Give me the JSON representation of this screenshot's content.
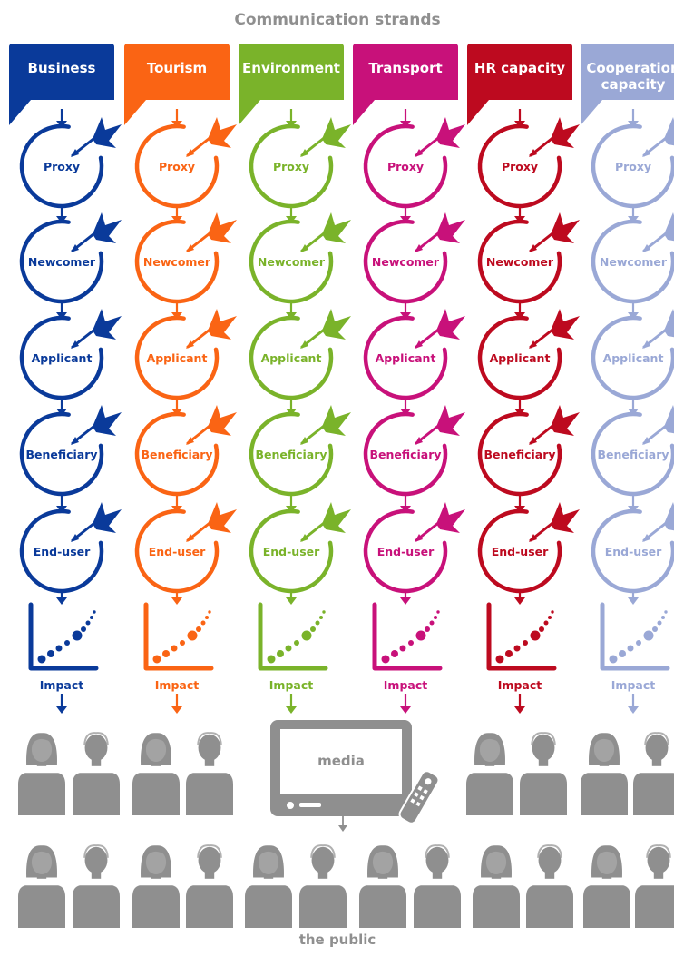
{
  "title": "Communication strands",
  "strands": [
    {
      "id": "business",
      "label_lines": [
        "Business"
      ],
      "color": "#0a3a9a"
    },
    {
      "id": "tourism",
      "label_lines": [
        "Tourism"
      ],
      "color": "#fa6414"
    },
    {
      "id": "environment",
      "label_lines": [
        "Environment"
      ],
      "color": "#7ab32a"
    },
    {
      "id": "transport",
      "label_lines": [
        "Transport"
      ],
      "color": "#c8117a"
    },
    {
      "id": "hr-capacity",
      "label_lines": [
        "HR capacity"
      ],
      "color": "#bd0a1f"
    },
    {
      "id": "cooperation-capacity",
      "label_lines": [
        "Cooperation",
        "capacity"
      ],
      "color": "#9aa8d6"
    }
  ],
  "stages": [
    "Proxy",
    "Newcomer",
    "Applicant",
    "Beneficiary",
    "End-user"
  ],
  "impact_label": "Impact",
  "media_label": "media",
  "public_label": "the public",
  "grey": "#8f8f8f",
  "icons": {
    "stage": "target-circle-dart-icon",
    "impact": "impact-chart-icon",
    "person": "person-icon",
    "tv": "tv-icon",
    "remote": "remote-control-icon"
  }
}
